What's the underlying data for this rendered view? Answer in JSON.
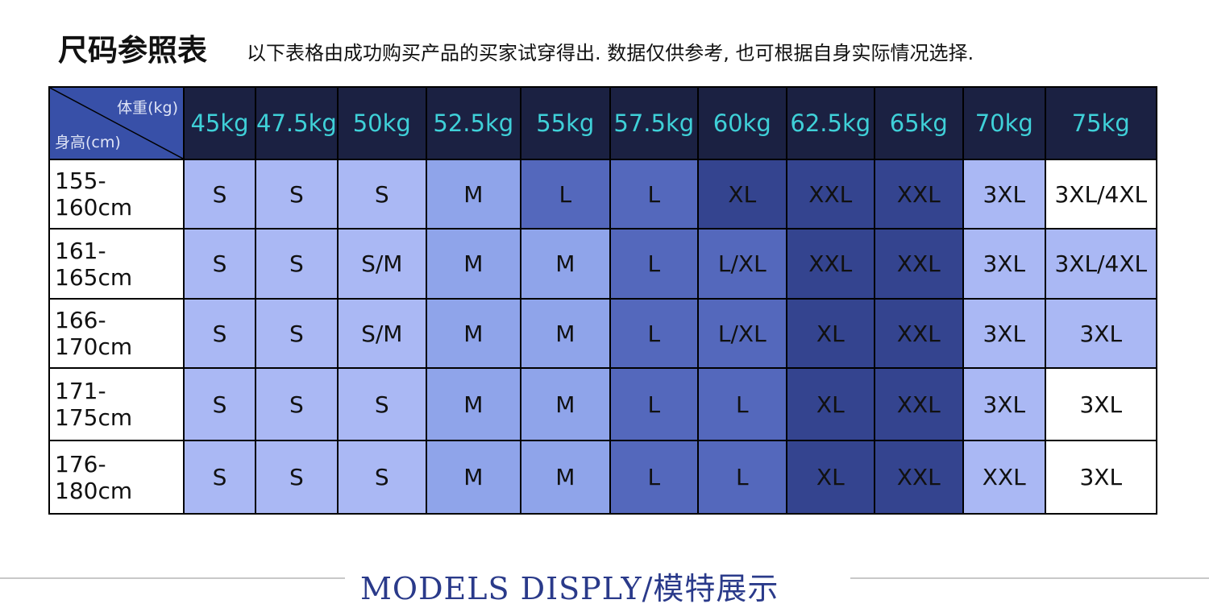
{
  "title": "尺码参照表",
  "subtitle": "以下表格由成功购买产品的买家试穿得出. 数据仅供参考, 也可根据自身实际情况选择.",
  "corner": {
    "weight_label": "体重(kg)",
    "height_label": "身高(cm)"
  },
  "columns": [
    "45kg",
    "47.5kg",
    "50kg",
    "52.5kg",
    "55kg",
    "57.5kg",
    "60kg",
    "62.5kg",
    "65kg",
    "70kg",
    "75kg"
  ],
  "colors": {
    "header": "#1b2142",
    "header_text": "#3fd0d8",
    "corner": "#3850a8",
    "L": "#aab8f4",
    "M": "#8fa4ea",
    "D1": "#5468bc",
    "D2": "#34448f",
    "W": "#ffffff"
  },
  "rows": [
    {
      "height": "155-160cm",
      "sizes": [
        "S",
        "S",
        "S",
        "M",
        "L",
        "L",
        "XL",
        "XXL",
        "XXL",
        "3XL",
        "3XL/4XL"
      ],
      "tones": [
        "L",
        "L",
        "L",
        "M",
        "D1",
        "D1",
        "D2",
        "D2",
        "D2",
        "L",
        "W"
      ]
    },
    {
      "height": "161-165cm",
      "sizes": [
        "S",
        "S",
        "S/M",
        "M",
        "M",
        "L",
        "L/XL",
        "XXL",
        "XXL",
        "3XL",
        "3XL/4XL"
      ],
      "tones": [
        "L",
        "L",
        "L",
        "M",
        "M",
        "D1",
        "D1",
        "D2",
        "D2",
        "L",
        "L"
      ]
    },
    {
      "height": "166-170cm",
      "sizes": [
        "S",
        "S",
        "S/M",
        "M",
        "M",
        "L",
        "L/XL",
        "XL",
        "XXL",
        "3XL",
        "3XL"
      ],
      "tones": [
        "L",
        "L",
        "L",
        "M",
        "M",
        "D1",
        "D1",
        "D2",
        "D2",
        "L",
        "L"
      ]
    },
    {
      "height": "171-175cm",
      "sizes": [
        "S",
        "S",
        "S",
        "M",
        "M",
        "L",
        "L",
        "XL",
        "XXL",
        "3XL",
        "3XL"
      ],
      "tones": [
        "L",
        "L",
        "L",
        "M",
        "M",
        "D1",
        "D1",
        "D2",
        "D2",
        "L",
        "W"
      ]
    },
    {
      "height": "176-180cm",
      "sizes": [
        "S",
        "S",
        "S",
        "M",
        "M",
        "L",
        "L",
        "XL",
        "XXL",
        "XXL",
        "3XL"
      ],
      "tones": [
        "L",
        "L",
        "L",
        "M",
        "M",
        "D1",
        "D1",
        "D2",
        "D2",
        "L",
        "W"
      ]
    }
  ],
  "footer": "MODELS DISPLY/模特展示"
}
